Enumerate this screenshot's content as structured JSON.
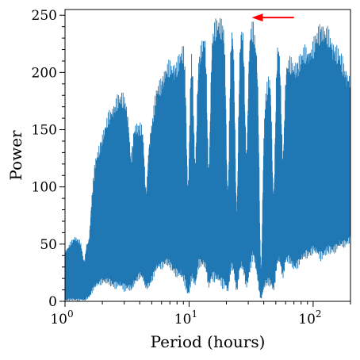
{
  "chart_data": {
    "type": "line",
    "title": "",
    "xlabel": "Period (hours)",
    "ylabel": "Power",
    "xscale": "log",
    "xlim": [
      1,
      200
    ],
    "ylim": [
      0,
      255
    ],
    "grid": false,
    "series_color": "#1f77b4",
    "annotation_color": "#ff0000",
    "x_ticks": [
      {
        "value": 1,
        "base": "10",
        "exp": "0"
      },
      {
        "value": 10,
        "base": "10",
        "exp": "1"
      },
      {
        "value": 100,
        "base": "10",
        "exp": "2"
      }
    ],
    "y_ticks": [
      0,
      50,
      100,
      150,
      200,
      250
    ],
    "envelope": {
      "x": [
        1,
        1.2,
        1.45,
        1.6,
        1.75,
        2.0,
        2.3,
        2.6,
        3.0,
        3.5,
        4.0,
        4.8,
        5.5,
        6.5,
        8,
        10,
        12,
        14,
        16,
        19,
        22,
        26,
        30,
        33,
        36,
        40,
        45,
        52,
        60,
        70,
        85,
        100,
        115,
        140,
        170,
        200
      ],
      "upper": [
        45,
        58,
        52,
        85,
        125,
        150,
        170,
        182,
        185,
        158,
        160,
        150,
        190,
        210,
        215,
        238,
        225,
        245,
        248,
        252,
        248,
        244,
        252,
        245,
        215,
        175,
        208,
        232,
        218,
        212,
        225,
        230,
        250,
        236,
        218,
        200
      ],
      "lower": [
        0,
        0,
        0,
        5,
        10,
        15,
        12,
        10,
        8,
        10,
        20,
        12,
        25,
        30,
        20,
        10,
        30,
        25,
        15,
        10,
        25,
        25,
        20,
        35,
        15,
        10,
        12,
        30,
        35,
        25,
        35,
        40,
        35,
        40,
        45,
        50
      ],
      "gaps": [
        {
          "x": 1.42,
          "depth": 0.3
        },
        {
          "x": 1.55,
          "depth": 0.25
        },
        {
          "x": 3.4,
          "depth": 0.2
        },
        {
          "x": 4.5,
          "depth": 0.35
        },
        {
          "x": 9.8,
          "depth": 0.55
        },
        {
          "x": 11.2,
          "depth": 0.45
        },
        {
          "x": 14.4,
          "depth": 0.5
        },
        {
          "x": 20.5,
          "depth": 0.6
        },
        {
          "x": 24.2,
          "depth": 0.65
        },
        {
          "x": 29.0,
          "depth": 0.45
        },
        {
          "x": 38.0,
          "depth": 0.85
        },
        {
          "x": 48.0,
          "depth": 0.55
        },
        {
          "x": 57.0,
          "depth": 0.4
        }
      ]
    },
    "annotation": {
      "type": "arrow",
      "from": {
        "x": 70,
        "y": 248
      },
      "to": {
        "x": 32,
        "y": 248
      }
    }
  }
}
